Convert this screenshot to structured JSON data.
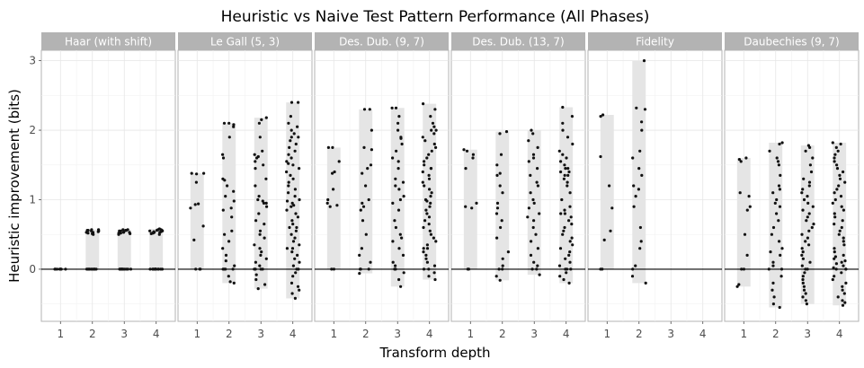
{
  "chart_data": {
    "type": "scatter",
    "title": "Heuristic vs Naive Test Pattern Performance (All Phases)",
    "xlabel": "Transform depth",
    "ylabel": "Heuristic improvement (bits)",
    "x_categories": [
      "1",
      "2",
      "3",
      "4"
    ],
    "ylim": [
      -0.75,
      3.15
    ],
    "y_ticks": [
      0,
      1,
      2,
      3
    ],
    "reference_line_y": 0,
    "grid": true,
    "facets": [
      {
        "name": "Haar (with shift)",
        "series": [
          {
            "x": "1",
            "min": 0.0,
            "max": 0.0,
            "values": [
              0,
              0,
              0,
              0,
              0,
              0,
              0,
              0
            ]
          },
          {
            "x": "2",
            "min": 0.0,
            "max": 0.57,
            "values": [
              0,
              0,
              0,
              0,
              0,
              0,
              0,
              0,
              0,
              0,
              0.5,
              0.51,
              0.52,
              0.53,
              0.54,
              0.55,
              0.56,
              0.57,
              0.57,
              0.56,
              0.55,
              0.53
            ]
          },
          {
            "x": "3",
            "min": 0.0,
            "max": 0.57,
            "values": [
              0,
              0,
              0,
              0,
              0,
              0,
              0,
              0,
              0,
              0,
              0,
              0,
              0.5,
              0.51,
              0.52,
              0.53,
              0.54,
              0.55,
              0.56,
              0.57,
              0.57,
              0.56,
              0.55,
              0.54,
              0.53,
              0.52
            ]
          },
          {
            "x": "4",
            "min": 0.0,
            "max": 0.58,
            "values": [
              0,
              0,
              0,
              0,
              0,
              0,
              0,
              0,
              0,
              0,
              0,
              0,
              0,
              0,
              0.5,
              0.51,
              0.52,
              0.53,
              0.54,
              0.55,
              0.56,
              0.57,
              0.58,
              0.57,
              0.56,
              0.55,
              0.54,
              0.53,
              0.52
            ]
          }
        ]
      },
      {
        "name": "Le Gall (5, 3)",
        "series": [
          {
            "x": "1",
            "min": 0.0,
            "max": 1.38,
            "values": [
              0,
              0,
              0,
              0.42,
              0.62,
              0.88,
              0.93,
              0.94,
              1.25,
              1.38,
              1.38,
              1.37
            ]
          },
          {
            "x": "2",
            "min": -0.2,
            "max": 2.1,
            "values": [
              -0.2,
              -0.18,
              -0.1,
              0,
              0,
              0.05,
              0.12,
              0.3,
              0.5,
              0.55,
              0.75,
              0.88,
              0.98,
              1.05,
              1.12,
              1.28,
              1.3,
              1.6,
              1.65,
              1.9,
              2.05,
              2.08,
              2.1,
              2.1,
              0,
              0.2,
              0.4,
              0.85,
              1.2,
              0
            ]
          },
          {
            "x": "3",
            "min": -0.28,
            "max": 2.18,
            "values": [
              -0.28,
              -0.22,
              -0.15,
              -0.08,
              0,
              0,
              0,
              0.05,
              0.1,
              0.2,
              0.3,
              0.35,
              0.45,
              0.55,
              0.65,
              0.8,
              0.9,
              0.95,
              0.98,
              1.0,
              1.05,
              1.2,
              1.3,
              1.45,
              1.55,
              1.6,
              1.62,
              1.65,
              1.7,
              1.9,
              2.1,
              2.15,
              2.18,
              0.25,
              0.5,
              0.7,
              0.95,
              1.5,
              0,
              0.15
            ]
          },
          {
            "x": "4",
            "min": -0.42,
            "max": 2.4,
            "values": [
              -0.42,
              -0.35,
              -0.3,
              -0.25,
              -0.2,
              -0.1,
              -0.05,
              0,
              0,
              0.05,
              0.1,
              0.15,
              0.2,
              0.25,
              0.3,
              0.35,
              0.4,
              0.45,
              0.5,
              0.55,
              0.6,
              0.65,
              0.7,
              0.75,
              0.8,
              0.85,
              0.9,
              0.95,
              1.0,
              1.05,
              1.1,
              1.15,
              1.2,
              1.25,
              1.3,
              1.35,
              1.4,
              1.45,
              1.5,
              1.55,
              1.6,
              1.65,
              1.7,
              1.75,
              1.8,
              1.85,
              1.9,
              1.95,
              2.0,
              2.05,
              2.1,
              2.2,
              2.4,
              2.4,
              0.92,
              0.98,
              1.52,
              0.3,
              0.6,
              1.9
            ]
          }
        ]
      },
      {
        "name": "Des. Dub. (9, 7)",
        "series": [
          {
            "x": "1",
            "min": 0.0,
            "max": 1.75,
            "values": [
              0,
              0,
              0.95,
              1.0,
              0.92,
              1.15,
              1.4,
              1.55,
              1.75,
              1.75,
              0.9,
              1.38
            ]
          },
          {
            "x": "2",
            "min": -0.06,
            "max": 2.3,
            "values": [
              -0.06,
              0,
              0,
              0.1,
              0.2,
              0.5,
              0.7,
              0.9,
              0.95,
              1.0,
              1.2,
              1.38,
              1.45,
              1.5,
              1.72,
              1.75,
              2.0,
              2.3,
              2.3,
              0,
              0.3,
              0.85
            ]
          },
          {
            "x": "3",
            "min": -0.25,
            "max": 2.32,
            "values": [
              -0.25,
              -0.15,
              -0.05,
              0,
              0,
              0.05,
              0.1,
              0.2,
              0.3,
              0.45,
              0.5,
              0.7,
              0.85,
              0.95,
              1.0,
              1.05,
              1.15,
              1.2,
              1.3,
              1.45,
              1.55,
              1.6,
              1.7,
              1.8,
              1.9,
              2.0,
              2.1,
              2.2,
              2.32,
              2.32,
              0.4,
              0.6,
              1.25,
              1.88
            ]
          },
          {
            "x": "4",
            "min": -0.15,
            "max": 2.38,
            "values": [
              -0.15,
              -0.1,
              -0.05,
              0,
              0,
              0.05,
              0.1,
              0.15,
              0.2,
              0.25,
              0.3,
              0.35,
              0.4,
              0.45,
              0.5,
              0.55,
              0.6,
              0.65,
              0.7,
              0.75,
              0.8,
              0.85,
              0.9,
              0.95,
              1.0,
              1.05,
              1.1,
              1.15,
              1.2,
              1.25,
              1.3,
              1.35,
              1.4,
              1.45,
              1.5,
              1.55,
              1.6,
              1.65,
              1.7,
              1.75,
              1.8,
              1.85,
              1.9,
              1.95,
              2.0,
              2.05,
              2.1,
              2.2,
              2.3,
              2.38,
              0.98,
              1.45,
              0.3,
              2.0
            ]
          }
        ]
      },
      {
        "name": "Des. Dub. (13, 7)",
        "series": [
          {
            "x": "1",
            "min": 0.0,
            "max": 1.72,
            "values": [
              0,
              0,
              0.95,
              0.88,
              1.45,
              1.6,
              1.65,
              1.72,
              1.7,
              0.9
            ]
          },
          {
            "x": "2",
            "min": -0.16,
            "max": 1.98,
            "values": [
              -0.16,
              -0.1,
              0,
              0,
              0.05,
              0.15,
              0.25,
              0.45,
              0.6,
              0.8,
              0.88,
              0.95,
              1.2,
              1.35,
              1.38,
              1.5,
              1.65,
              1.95,
              1.98,
              0.7,
              1.1
            ]
          },
          {
            "x": "3",
            "min": -0.08,
            "max": 2.0,
            "values": [
              -0.08,
              0,
              0,
              0.05,
              0.1,
              0.2,
              0.3,
              0.4,
              0.5,
              0.6,
              0.7,
              0.8,
              0.88,
              0.95,
              1.0,
              1.1,
              1.2,
              1.25,
              1.35,
              1.45,
              1.55,
              1.65,
              1.75,
              1.85,
              1.95,
              2.0,
              0.75,
              1.6
            ]
          },
          {
            "x": "4",
            "min": -0.2,
            "max": 2.33,
            "values": [
              -0.2,
              -0.15,
              -0.1,
              -0.05,
              0,
              0,
              0.05,
              0.1,
              0.15,
              0.2,
              0.25,
              0.3,
              0.35,
              0.4,
              0.45,
              0.5,
              0.55,
              0.6,
              0.65,
              0.7,
              0.75,
              0.8,
              0.85,
              0.9,
              1.0,
              1.1,
              1.2,
              1.25,
              1.3,
              1.35,
              1.4,
              1.45,
              1.5,
              1.55,
              1.6,
              1.65,
              1.7,
              1.8,
              1.9,
              2.0,
              2.1,
              2.2,
              2.33,
              1.4,
              1.45,
              1.35,
              0.0,
              0.8
            ]
          }
        ]
      },
      {
        "name": "Fidelity",
        "series": [
          {
            "x": "1",
            "min": 0.0,
            "max": 2.22,
            "values": [
              0,
              0,
              0.55,
              0.88,
              1.2,
              1.62,
              2.2,
              2.22,
              0.42
            ]
          },
          {
            "x": "2",
            "min": -0.2,
            "max": 3.0,
            "values": [
              -0.2,
              -0.1,
              0,
              0.05,
              0.3,
              0.6,
              0.9,
              1.05,
              1.15,
              1.2,
              1.45,
              1.6,
              1.7,
              2.0,
              2.12,
              2.3,
              2.32,
              3.0,
              0.4,
              1.35
            ]
          }
        ]
      },
      {
        "name": "Daubechies (9, 7)",
        "series": [
          {
            "x": "1",
            "min": -0.25,
            "max": 1.6,
            "values": [
              -0.25,
              -0.22,
              0,
              0,
              0.2,
              0.5,
              0.85,
              0.9,
              1.05,
              1.1,
              1.58,
              1.6,
              1.55
            ]
          },
          {
            "x": "2",
            "min": -0.55,
            "max": 1.82,
            "values": [
              -0.55,
              -0.5,
              -0.4,
              -0.3,
              -0.2,
              -0.1,
              0,
              0,
              0.05,
              0.1,
              0.2,
              0.3,
              0.4,
              0.5,
              0.6,
              0.7,
              0.8,
              0.9,
              1.0,
              1.1,
              1.15,
              1.2,
              1.35,
              1.5,
              1.55,
              1.6,
              1.7,
              1.8,
              1.82,
              0.25,
              0.95
            ]
          },
          {
            "x": "3",
            "min": -0.5,
            "max": 1.78,
            "values": [
              -0.5,
              -0.45,
              -0.4,
              -0.35,
              -0.3,
              -0.25,
              -0.2,
              -0.15,
              -0.1,
              -0.05,
              0,
              0,
              0.05,
              0.1,
              0.15,
              0.2,
              0.25,
              0.3,
              0.35,
              0.4,
              0.45,
              0.5,
              0.55,
              0.6,
              0.65,
              0.7,
              0.75,
              0.8,
              0.85,
              0.9,
              0.95,
              1.0,
              1.05,
              1.1,
              1.15,
              1.2,
              1.25,
              1.3,
              1.4,
              1.5,
              1.6,
              1.7,
              1.75,
              1.78
            ]
          },
          {
            "x": "4",
            "min": -0.52,
            "max": 1.82,
            "values": [
              -0.52,
              -0.48,
              -0.45,
              -0.4,
              -0.35,
              -0.3,
              -0.25,
              -0.2,
              -0.15,
              -0.1,
              -0.05,
              0,
              0,
              0,
              0.02,
              0.05,
              0.08,
              0.1,
              0.12,
              0.15,
              0.18,
              0.2,
              0.25,
              0.3,
              0.35,
              0.4,
              0.45,
              0.5,
              0.55,
              0.6,
              0.65,
              0.7,
              0.75,
              0.8,
              0.85,
              0.9,
              0.95,
              1.0,
              1.05,
              1.1,
              1.15,
              1.2,
              1.25,
              1.3,
              1.35,
              1.4,
              1.45,
              1.5,
              1.55,
              1.6,
              1.65,
              1.7,
              1.75,
              1.8,
              1.82
            ]
          }
        ]
      }
    ]
  }
}
